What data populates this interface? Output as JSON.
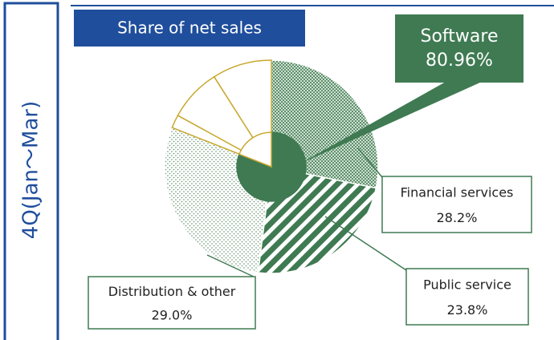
{
  "chart_data": {
    "type": "pie",
    "title": "Share of net sales",
    "subtitle": "4Q(Jan～Mar)",
    "color": "#3f7a52",
    "edge_color": "#c8a830",
    "inner": {
      "categories": [
        "Software",
        null
      ],
      "values": [
        80.96,
        19.04
      ],
      "value_labels": [
        "80.96%",
        null
      ]
    },
    "outer": {
      "categories": [
        "Financial services",
        "Public service",
        "Distribution & other",
        null,
        null,
        null
      ],
      "values": [
        28.2,
        23.8,
        29.0,
        2.0,
        8.0,
        9.0
      ],
      "value_labels": [
        "28.2%",
        "23.8%",
        "29.0%",
        null,
        null,
        null
      ]
    }
  }
}
